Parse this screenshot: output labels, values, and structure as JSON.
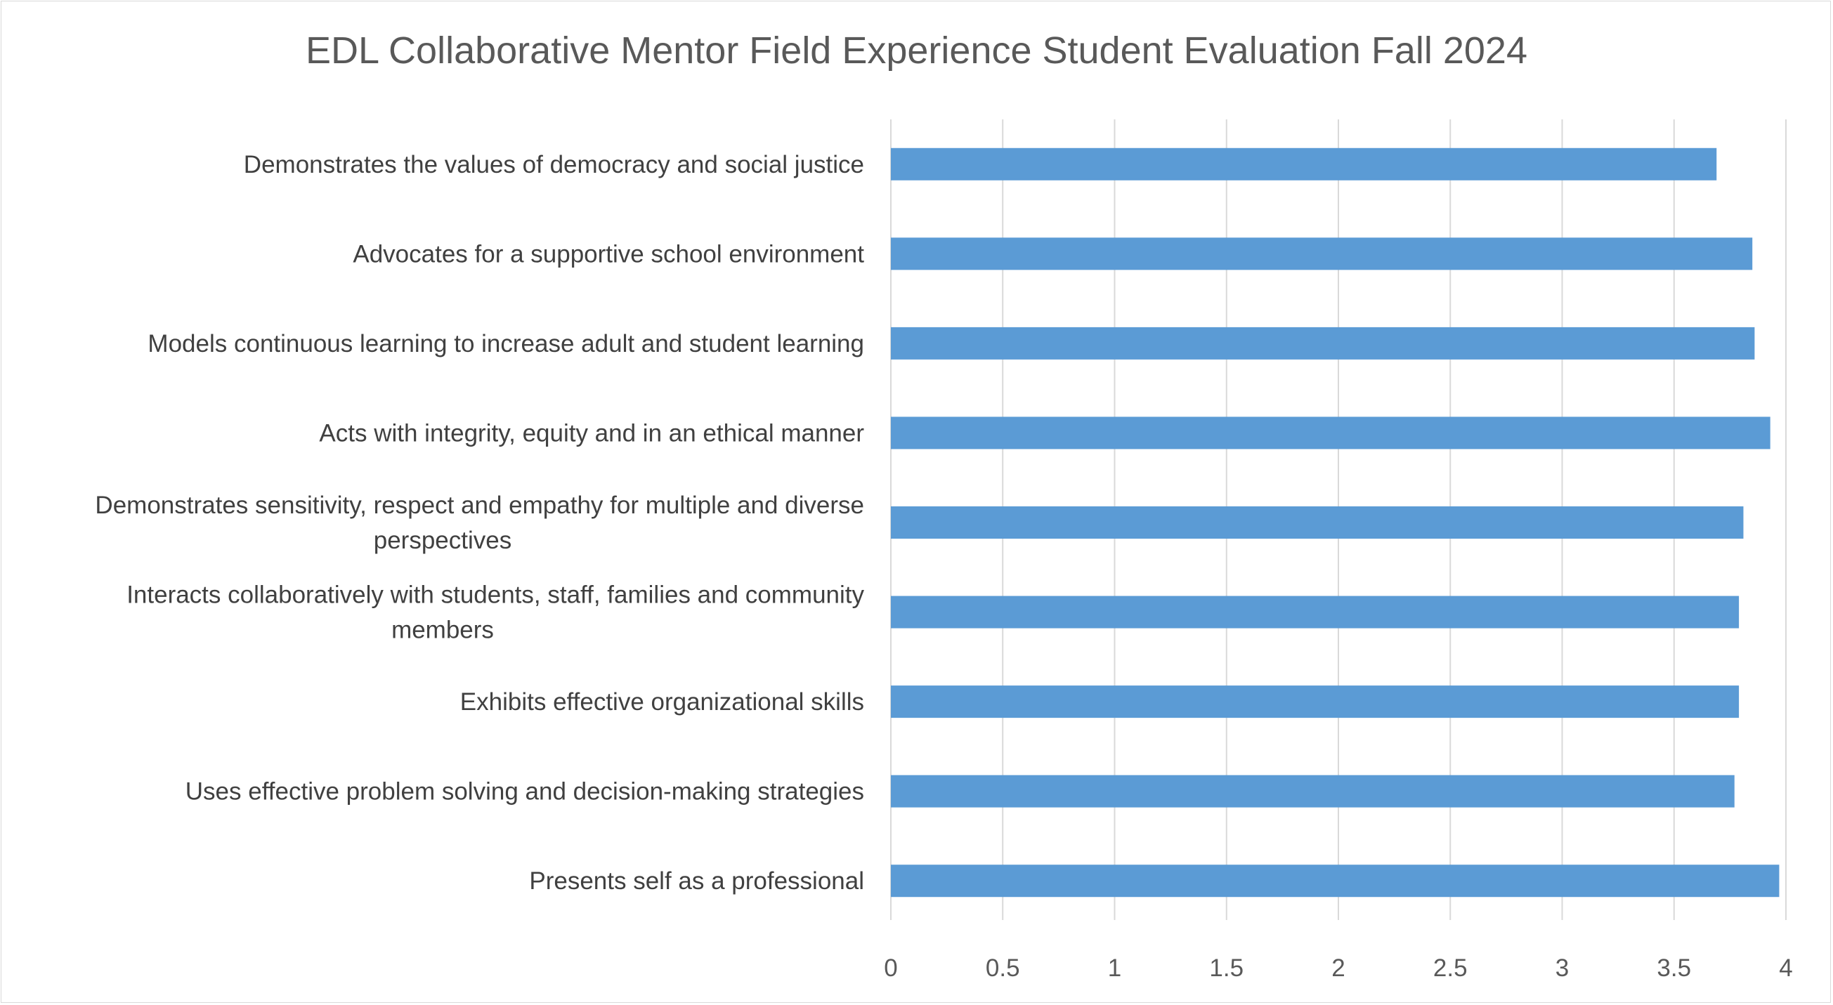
{
  "chart_data": {
    "type": "bar",
    "orientation": "horizontal",
    "title": "EDL Collaborative Mentor Field Experience Student Evaluation Fall 2024",
    "xlabel": "",
    "ylabel": "",
    "xlim": [
      0,
      4
    ],
    "ticks": [
      "0",
      "0.5",
      "1",
      "1.5",
      "2",
      "2.5",
      "3",
      "3.5",
      "4"
    ],
    "tick_values": [
      0,
      0.5,
      1,
      1.5,
      2,
      2.5,
      3,
      3.5,
      4
    ],
    "grid": true,
    "legend": "none",
    "bar_color": "#5b9bd5",
    "gridline_color": "#d9d9d9",
    "categories": [
      [
        "Demonstrates the values of democracy and social justice"
      ],
      [
        "Advocates for a supportive school environment"
      ],
      [
        "Models continuous learning to increase adult and student learning"
      ],
      [
        "Acts with integrity, equity and in an ethical manner"
      ],
      [
        "Demonstrates sensitivity, respect and empathy for multiple and diverse",
        "perspectives"
      ],
      [
        "Interacts collaboratively with students, staff, families and community",
        "members"
      ],
      [
        "Exhibits effective organizational skills"
      ],
      [
        "Uses effective problem solving and decision-making strategies"
      ],
      [
        "Presents self as a professional"
      ]
    ],
    "values": [
      3.69,
      3.85,
      3.86,
      3.93,
      3.81,
      3.79,
      3.79,
      3.77,
      3.97
    ]
  }
}
